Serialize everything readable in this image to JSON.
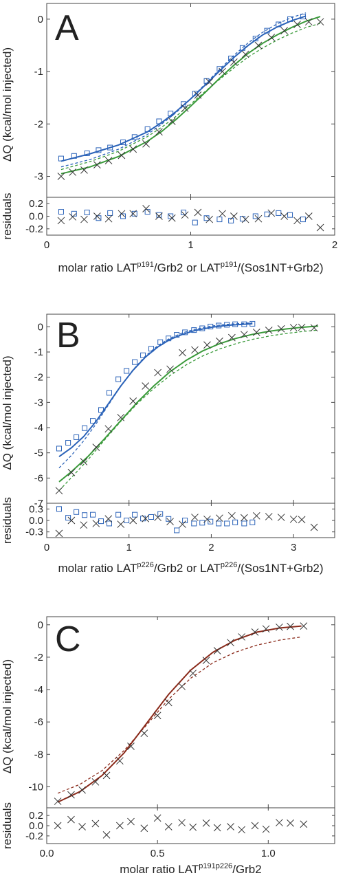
{
  "chart_data": [
    {
      "type": "scatter",
      "panel_label": "A",
      "ylabel": "ΔQ (kcal/mol injected)",
      "residual_ylabel": "residuals",
      "xlabel_parts": [
        "molar ratio LAT",
        "p191",
        "/Grb2 or LAT",
        "p191",
        "/(Sos1NT+Grb2)"
      ],
      "xlim": [
        0,
        2
      ],
      "ylim": [
        -3.4,
        0.3
      ],
      "res_ylim": [
        -0.3,
        0.3
      ],
      "x_ticks": [
        "0",
        "1",
        "2"
      ],
      "y_ticks": [
        "0",
        "-1",
        "-2",
        "-3"
      ],
      "res_ticks": [
        "0.2",
        "0.0",
        "-0.2"
      ],
      "series": [
        {
          "marker": "square",
          "color": "#2a62b8",
          "x": [
            0.1,
            0.19,
            0.28,
            0.36,
            0.44,
            0.53,
            0.61,
            0.7,
            0.78,
            0.86,
            0.95,
            1.03,
            1.11,
            1.2,
            1.28,
            1.36,
            1.45,
            1.53,
            1.61,
            1.69,
            1.78
          ],
          "y": [
            -2.66,
            -2.61,
            -2.56,
            -2.5,
            -2.45,
            -2.35,
            -2.25,
            -2.1,
            -1.95,
            -1.8,
            -1.62,
            -1.42,
            -1.18,
            -0.95,
            -0.75,
            -0.55,
            -0.37,
            -0.22,
            -0.1,
            0.0,
            0.05
          ],
          "residuals": [
            0.07,
            0.04,
            0.06,
            -0.03,
            0.05,
            0.0,
            0.04,
            0.07,
            0.02,
            0.0,
            0.06,
            -0.1,
            -0.03,
            -0.05,
            -0.07,
            -0.04,
            0.0,
            0.03,
            0.05,
            0.02,
            -0.05
          ],
          "fit_x": [
            0.1,
            0.3,
            0.5,
            0.7,
            0.8,
            0.9,
            1.0,
            1.1,
            1.2,
            1.3,
            1.4,
            1.5,
            1.6,
            1.7,
            1.8
          ],
          "fit_y": [
            -2.71,
            -2.57,
            -2.4,
            -2.15,
            -1.97,
            -1.76,
            -1.52,
            -1.26,
            -0.99,
            -0.73,
            -0.5,
            -0.3,
            -0.15,
            -0.03,
            0.06
          ],
          "dash_x": [
            0.1,
            0.3,
            0.5,
            0.7,
            0.8,
            0.9,
            1.0,
            1.1,
            1.2,
            1.3,
            1.4,
            1.5,
            1.6,
            1.7,
            1.8
          ],
          "dash_y": [
            -2.82,
            -2.68,
            -2.48,
            -2.2,
            -2.0,
            -1.78,
            -1.52,
            -1.24,
            -0.96,
            -0.69,
            -0.45,
            -0.25,
            -0.09,
            0.03,
            0.12
          ]
        },
        {
          "marker": "cross",
          "color": "#3a9a3a",
          "x": [
            0.1,
            0.18,
            0.26,
            0.35,
            0.43,
            0.52,
            0.6,
            0.69,
            0.78,
            0.87,
            0.96,
            1.05,
            1.13,
            1.22,
            1.3,
            1.38,
            1.47,
            1.56,
            1.65,
            1.74,
            1.82,
            1.9
          ],
          "y": [
            -3.0,
            -2.92,
            -2.88,
            -2.78,
            -2.7,
            -2.6,
            -2.48,
            -2.38,
            -2.15,
            -1.95,
            -1.7,
            -1.45,
            -1.2,
            -1.0,
            -0.82,
            -0.67,
            -0.5,
            -0.35,
            -0.22,
            -0.1,
            -0.05,
            -0.05
          ],
          "residuals": [
            -0.07,
            -0.01,
            -0.05,
            0.0,
            -0.04,
            0.04,
            0.04,
            0.12,
            0.0,
            -0.03,
            0.02,
            0.06,
            -0.05,
            0.04,
            0.0,
            -0.05,
            -0.04,
            0.05,
            0.0,
            -0.07,
            0.0,
            -0.18
          ],
          "fit_x": [
            0.1,
            0.3,
            0.5,
            0.7,
            0.8,
            0.9,
            1.0,
            1.1,
            1.2,
            1.3,
            1.4,
            1.5,
            1.6,
            1.7,
            1.8,
            1.9
          ],
          "fit_y": [
            -2.95,
            -2.82,
            -2.62,
            -2.33,
            -2.14,
            -1.91,
            -1.66,
            -1.4,
            -1.13,
            -0.88,
            -0.65,
            -0.46,
            -0.3,
            -0.16,
            -0.04,
            0.05
          ],
          "dash_x": [
            0.1,
            0.3,
            0.5,
            0.7,
            0.8,
            0.9,
            1.0,
            1.1,
            1.2,
            1.3,
            1.4,
            1.5,
            1.6,
            1.7,
            1.8,
            1.9
          ],
          "dash_y": [
            -2.87,
            -2.72,
            -2.52,
            -2.24,
            -2.06,
            -1.85,
            -1.62,
            -1.38,
            -1.15,
            -0.93,
            -0.72,
            -0.55,
            -0.4,
            -0.27,
            -0.16,
            -0.08
          ]
        }
      ]
    },
    {
      "type": "scatter",
      "panel_label": "B",
      "ylabel": "ΔQ (kcal/mol injected)",
      "residual_ylabel": "residuals",
      "xlabel_parts": [
        "molar ratio LAT",
        "p226",
        "/Grb2 or LAT",
        "p226",
        "/(Sos1NT+Grb2)"
      ],
      "xlim": [
        0,
        3.5
      ],
      "ylim": [
        -7,
        0.5
      ],
      "res_ylim": [
        -0.45,
        0.45
      ],
      "x_ticks": [
        "0",
        "1",
        "2",
        "3"
      ],
      "y_ticks": [
        "0",
        "-1",
        "-2",
        "-3",
        "-4",
        "-5",
        "-6",
        "-7"
      ],
      "res_ticks": [
        "0.3",
        "0.0",
        "-0.3"
      ],
      "series": [
        {
          "marker": "square",
          "color": "#2a62b8",
          "x": [
            0.15,
            0.26,
            0.36,
            0.46,
            0.56,
            0.66,
            0.76,
            0.87,
            0.97,
            1.07,
            1.17,
            1.27,
            1.38,
            1.48,
            1.58,
            1.68,
            1.79,
            1.89,
            1.99,
            2.09,
            2.19,
            2.29,
            2.4,
            2.5
          ],
          "y": [
            -4.83,
            -4.6,
            -4.38,
            -4.02,
            -3.73,
            -3.3,
            -2.62,
            -2.08,
            -1.75,
            -1.4,
            -1.13,
            -0.87,
            -0.61,
            -0.46,
            -0.32,
            -0.22,
            -0.13,
            -0.06,
            0.01,
            0.05,
            0.08,
            0.1,
            0.1,
            0.12
          ],
          "residuals": [
            0.3,
            0.07,
            0.22,
            0.14,
            0.15,
            -0.02,
            -0.08,
            0.15,
            0.0,
            0.15,
            0.05,
            0.09,
            0.17,
            0.04,
            -0.26,
            0.0,
            -0.08,
            -0.06,
            -0.03,
            -0.08,
            -0.08,
            -0.05,
            -0.08,
            -0.05
          ],
          "fit_x": [
            0.15,
            0.3,
            0.45,
            0.6,
            0.75,
            0.9,
            1.05,
            1.2,
            1.35,
            1.5,
            1.65,
            1.8,
            2.0,
            2.2,
            2.5
          ],
          "fit_y": [
            -5.15,
            -4.8,
            -4.35,
            -3.75,
            -3.05,
            -2.35,
            -1.72,
            -1.2,
            -0.8,
            -0.5,
            -0.3,
            -0.15,
            -0.02,
            0.06,
            0.12
          ],
          "dash_x": [
            0.15,
            0.3,
            0.45,
            0.6,
            0.75,
            0.9,
            1.05,
            1.2,
            1.35,
            1.5,
            1.65,
            1.8,
            2.0,
            2.2,
            2.5
          ],
          "dash_y": [
            -5.6,
            -5.1,
            -4.52,
            -3.85,
            -3.1,
            -2.35,
            -1.7,
            -1.16,
            -0.75,
            -0.45,
            -0.24,
            -0.1,
            0.03,
            0.1,
            0.16
          ]
        },
        {
          "marker": "cross",
          "color": "#3a9a3a",
          "x": [
            0.15,
            0.3,
            0.45,
            0.6,
            0.75,
            0.9,
            1.05,
            1.2,
            1.35,
            1.5,
            1.65,
            1.8,
            1.95,
            2.1,
            2.25,
            2.4,
            2.55,
            2.7,
            2.85,
            3.0,
            3.1,
            3.25
          ],
          "y": [
            -6.5,
            -5.78,
            -5.35,
            -4.78,
            -4.05,
            -3.6,
            -2.95,
            -2.35,
            -1.82,
            -1.68,
            -1.03,
            -0.92,
            -0.72,
            -0.57,
            -0.43,
            -0.31,
            -0.22,
            -0.14,
            -0.08,
            -0.03,
            -0.02,
            -0.04
          ],
          "residuals": [
            -0.34,
            0.0,
            -0.12,
            -0.08,
            0.04,
            -0.1,
            0.0,
            0.05,
            0.08,
            -0.03,
            -0.1,
            0.08,
            0.03,
            0.06,
            0.12,
            0.07,
            0.12,
            0.1,
            0.08,
            0.03,
            0.02,
            -0.18
          ],
          "fit_x": [
            0.15,
            0.3,
            0.5,
            0.7,
            0.9,
            1.1,
            1.3,
            1.5,
            1.7,
            1.9,
            2.1,
            2.3,
            2.5,
            2.7,
            2.9,
            3.1,
            3.3
          ],
          "fit_y": [
            -6.15,
            -5.75,
            -5.15,
            -4.45,
            -3.72,
            -3.0,
            -2.35,
            -1.78,
            -1.32,
            -0.95,
            -0.67,
            -0.46,
            -0.3,
            -0.18,
            -0.09,
            -0.02,
            0.03
          ],
          "dash_x": [
            0.15,
            0.3,
            0.5,
            0.7,
            0.9,
            1.1,
            1.3,
            1.5,
            1.7,
            1.9,
            2.1,
            2.3,
            2.5,
            2.7,
            2.9,
            3.1,
            3.3
          ],
          "dash_y": [
            -6.5,
            -5.98,
            -5.28,
            -4.5,
            -3.75,
            -3.05,
            -2.45,
            -1.93,
            -1.5,
            -1.15,
            -0.88,
            -0.67,
            -0.5,
            -0.37,
            -0.27,
            -0.19,
            -0.13
          ]
        }
      ]
    },
    {
      "type": "scatter",
      "panel_label": "C",
      "ylabel": "ΔQ (kcal/mol injected)",
      "residual_ylabel": "residuals",
      "xlabel_parts": [
        "molar ratio LAT",
        "p191p226",
        "/Grb2",
        "",
        ""
      ],
      "xlim": [
        0,
        1.3
      ],
      "ylim": [
        -11.3,
        0.5
      ],
      "res_ylim": [
        -0.35,
        0.35
      ],
      "x_ticks": [
        "0.0",
        "0.5",
        "1.0"
      ],
      "y_ticks": [
        "0",
        "-2",
        "-4",
        "-6",
        "-8",
        "-10"
      ],
      "res_ticks": [
        "0.2",
        "0.0",
        "-0.2"
      ],
      "series": [
        {
          "marker": "cross",
          "color": "#333333",
          "x": [
            0.05,
            0.11,
            0.16,
            0.22,
            0.27,
            0.33,
            0.38,
            0.44,
            0.5,
            0.55,
            0.61,
            0.66,
            0.72,
            0.77,
            0.83,
            0.88,
            0.94,
            0.99,
            1.05,
            1.1,
            1.16
          ],
          "y": [
            -10.9,
            -10.5,
            -10.2,
            -9.7,
            -9.3,
            -8.4,
            -7.5,
            -6.7,
            -5.6,
            -4.8,
            -3.8,
            -3.0,
            -2.2,
            -1.6,
            -1.1,
            -0.75,
            -0.45,
            -0.25,
            -0.15,
            -0.1,
            -0.08
          ],
          "residuals": [
            0.0,
            0.12,
            -0.02,
            0.04,
            -0.18,
            0.0,
            0.08,
            -0.05,
            0.15,
            -0.02,
            0.06,
            -0.03,
            0.05,
            -0.04,
            -0.02,
            -0.08,
            0.0,
            -0.07,
            0.06,
            0.05,
            0.03
          ],
          "fit_color": "#8a2a1a",
          "fit_x": [
            0.05,
            0.15,
            0.25,
            0.35,
            0.45,
            0.55,
            0.65,
            0.75,
            0.85,
            0.95,
            1.05,
            1.15
          ],
          "fit_y": [
            -10.95,
            -10.3,
            -9.3,
            -7.9,
            -6.1,
            -4.3,
            -2.8,
            -1.7,
            -0.95,
            -0.45,
            -0.2,
            -0.08
          ],
          "dash_x": [
            0.05,
            0.15,
            0.25,
            0.35,
            0.45,
            0.55,
            0.65,
            0.75,
            0.85,
            0.95,
            1.05,
            1.15
          ],
          "dash_y": [
            -10.4,
            -9.85,
            -9.0,
            -7.75,
            -6.2,
            -4.6,
            -3.3,
            -2.35,
            -1.7,
            -1.25,
            -0.95,
            -0.75
          ]
        }
      ]
    }
  ]
}
